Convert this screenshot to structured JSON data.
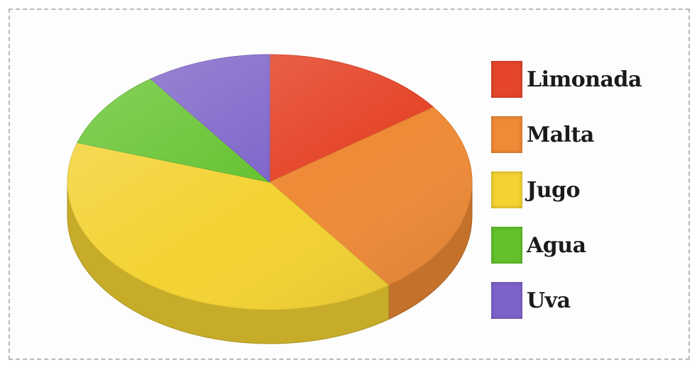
{
  "chart_data": {
    "type": "pie",
    "title": "",
    "labels": [
      "Limonada",
      "Malta",
      "Jugo",
      "Agua",
      "Uva"
    ],
    "values": [
      15,
      25,
      40,
      10,
      10
    ],
    "colors": [
      "#e5462a",
      "#ef8a36",
      "#f3d232",
      "#63c22c",
      "#7d63c9"
    ],
    "legend_position": "right",
    "style": "3d"
  }
}
